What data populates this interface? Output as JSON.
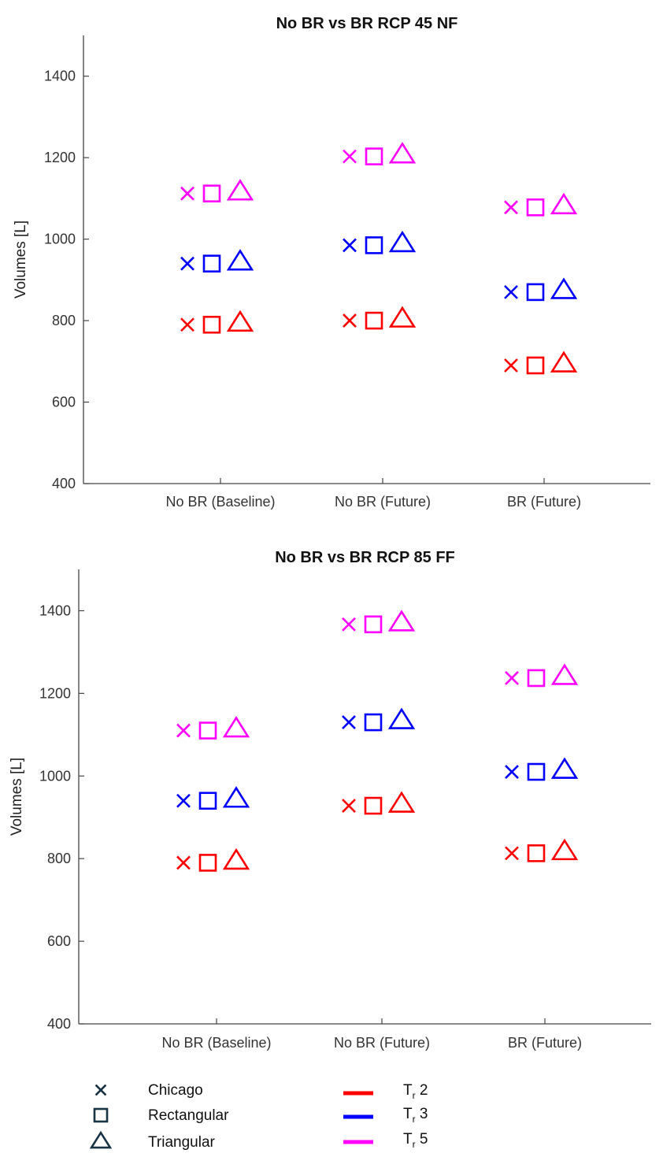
{
  "chart_data": [
    {
      "type": "scatter",
      "title": "No BR vs BR RCP 45 NF",
      "ylabel": "Volumes [L]",
      "xlabel": "",
      "categories": [
        "No BR (Baseline)",
        "No BR (Future)",
        "BR (Future)"
      ],
      "ylim": [
        400,
        1500
      ],
      "yticks": [
        400,
        600,
        800,
        1000,
        1200,
        1400
      ],
      "grid": false,
      "series": [
        {
          "name": "Tr 2",
          "shape": "all",
          "color": "#ff0000",
          "values": {
            "Chicago": [
              790,
              800,
              690
            ],
            "Rectangular": [
              790,
              800,
              690
            ],
            "Triangular": [
              795,
              805,
              695
            ]
          }
        },
        {
          "name": "Tr 3",
          "shape": "all",
          "color": "#0000ff",
          "values": {
            "Chicago": [
              940,
              985,
              870
            ],
            "Rectangular": [
              940,
              985,
              870
            ],
            "Triangular": [
              945,
              990,
              875
            ]
          }
        },
        {
          "name": "Tr 5",
          "shape": "all",
          "color": "#ff00ff",
          "values": {
            "Chicago": [
              1112,
              1203,
              1078
            ],
            "Rectangular": [
              1112,
              1203,
              1078
            ],
            "Triangular": [
              1117,
              1208,
              1083
            ]
          }
        }
      ]
    },
    {
      "type": "scatter",
      "title": "No BR vs BR RCP 85 FF",
      "ylabel": "Volumes [L]",
      "xlabel": "",
      "categories": [
        "No BR (Baseline)",
        "No BR (Future)",
        "BR (Future)"
      ],
      "ylim": [
        400,
        1500
      ],
      "yticks": [
        400,
        600,
        800,
        1000,
        1200,
        1400
      ],
      "grid": false,
      "series": [
        {
          "name": "Tr 2",
          "shape": "all",
          "color": "#ff0000",
          "values": {
            "Chicago": [
              790,
              928,
              813
            ],
            "Rectangular": [
              790,
              928,
              813
            ],
            "Triangular": [
              795,
              933,
              818
            ]
          }
        },
        {
          "name": "Tr 3",
          "shape": "all",
          "color": "#0000ff",
          "values": {
            "Chicago": [
              940,
              1130,
              1010
            ],
            "Rectangular": [
              940,
              1130,
              1010
            ],
            "Triangular": [
              945,
              1135,
              1015
            ]
          }
        },
        {
          "name": "Tr 5",
          "shape": "all",
          "color": "#ff00ff",
          "values": {
            "Chicago": [
              1110,
              1367,
              1237
            ],
            "Rectangular": [
              1110,
              1367,
              1237
            ],
            "Triangular": [
              1115,
              1372,
              1242
            ]
          }
        }
      ]
    }
  ],
  "legend": {
    "markers": [
      {
        "label": "Chicago",
        "icon": "x-marker-icon"
      },
      {
        "label": "Rectangular",
        "icon": "square-marker-icon"
      },
      {
        "label": "Triangular",
        "icon": "triangle-marker-icon"
      }
    ],
    "lines": [
      {
        "main": "T",
        "sub": "r",
        "value": "2",
        "color": "#ff0000"
      },
      {
        "main": "T",
        "sub": "r",
        "value": "3",
        "color": "#0000ff"
      },
      {
        "main": "T",
        "sub": "r",
        "value": "5",
        "color": "#ff00ff"
      }
    ],
    "marker_color": "#1a3344"
  }
}
